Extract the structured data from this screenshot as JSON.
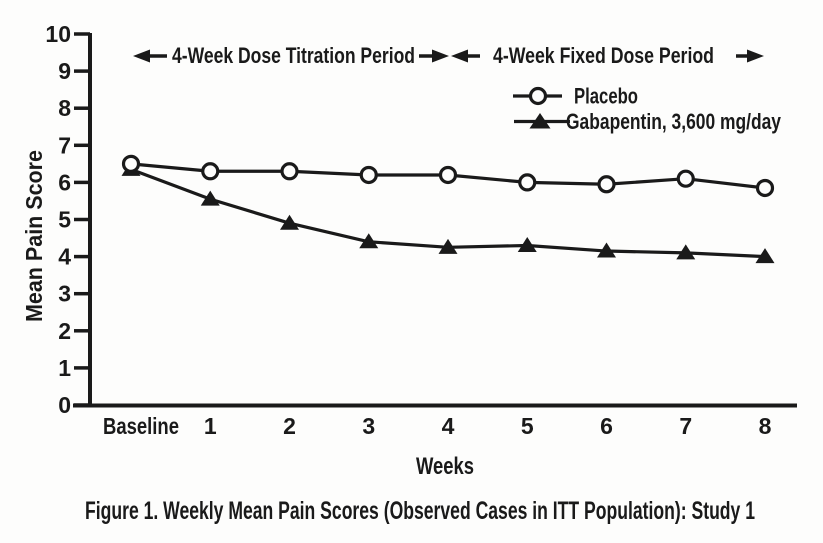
{
  "figure": {
    "caption": "Figure 1. Weekly Mean Pain Scores (Observed Cases in ITT Population): Study 1"
  },
  "annotations": {
    "titration_period": "4-Week Dose Titration Period",
    "fixed_period": "4-Week Fixed Dose Period"
  },
  "colors": {
    "ink": "#1a1a1a",
    "background": "#fdfdfc"
  },
  "chart_data": {
    "type": "line",
    "title": "",
    "xlabel": "Weeks",
    "ylabel": "Mean Pain Score",
    "categories": [
      "Baseline",
      "1",
      "2",
      "3",
      "4",
      "5",
      "6",
      "7",
      "8"
    ],
    "ylim": [
      0,
      10
    ],
    "ytick_step": 1,
    "grid": false,
    "legend_position": "top-right",
    "series": [
      {
        "name": "Placebo",
        "marker": "open-circle",
        "values": [
          6.5,
          6.3,
          6.3,
          6.2,
          6.2,
          6.0,
          5.95,
          6.1,
          5.85
        ]
      },
      {
        "name": "Gabapentin, 3,600 mg/day",
        "marker": "filled-triangle",
        "values": [
          6.35,
          5.55,
          4.9,
          4.4,
          4.25,
          4.3,
          4.15,
          4.1,
          4.0
        ]
      }
    ]
  }
}
